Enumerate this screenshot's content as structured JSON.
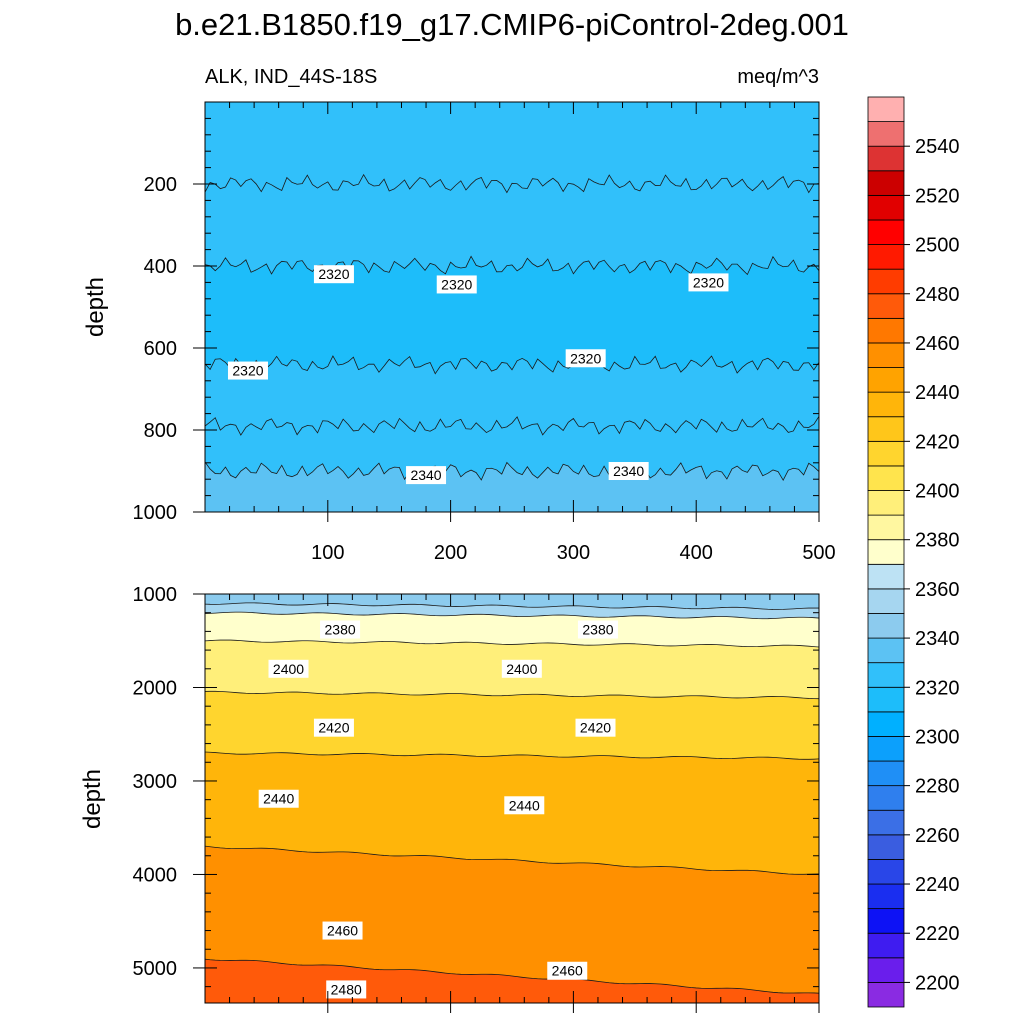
{
  "title": "b.e21.B1850.f19_g17.CMIP6-piControl-2deg.001",
  "variable_label": "ALK, IND_44S-18S",
  "units_label": "meq/m^3",
  "colors": {
    "colorbar_levels": [
      {
        "value": 2200,
        "color": "#8a2be2"
      },
      {
        "value": 2210,
        "color": "#6a1eec"
      },
      {
        "value": 2220,
        "color": "#3f1cf0"
      },
      {
        "value": 2230,
        "color": "#0d12f5"
      },
      {
        "value": 2240,
        "color": "#1a2ef0"
      },
      {
        "value": 2250,
        "color": "#2946e8"
      },
      {
        "value": 2260,
        "color": "#3a5de0"
      },
      {
        "value": 2270,
        "color": "#3b6fe6"
      },
      {
        "value": 2280,
        "color": "#2f7fee"
      },
      {
        "value": 2290,
        "color": "#1f8ff6"
      },
      {
        "value": 2300,
        "color": "#0ca0fc"
      },
      {
        "value": 2310,
        "color": "#00b0ff"
      },
      {
        "value": 2320,
        "color": "#1dbdfa"
      },
      {
        "value": 2330,
        "color": "#31c0fa"
      },
      {
        "value": 2340,
        "color": "#5cc2f3"
      },
      {
        "value": 2350,
        "color": "#8ccbee"
      },
      {
        "value": 2360,
        "color": "#a6d6f0"
      },
      {
        "value": 2370,
        "color": "#bde2f4"
      },
      {
        "value": 2380,
        "color": "#ffffcc"
      },
      {
        "value": 2390,
        "color": "#fff7a0"
      },
      {
        "value": 2400,
        "color": "#ffef7a"
      },
      {
        "value": 2410,
        "color": "#ffe44d"
      },
      {
        "value": 2420,
        "color": "#ffd52e"
      },
      {
        "value": 2430,
        "color": "#ffc61a"
      },
      {
        "value": 2440,
        "color": "#ffb50a"
      },
      {
        "value": 2450,
        "color": "#ffa300"
      },
      {
        "value": 2460,
        "color": "#ff9000"
      },
      {
        "value": 2470,
        "color": "#ff7800"
      },
      {
        "value": 2480,
        "color": "#ff5a0a"
      },
      {
        "value": 2490,
        "color": "#ff3c00"
      },
      {
        "value": 2500,
        "color": "#ff1a00"
      },
      {
        "value": 2510,
        "color": "#ff0000"
      },
      {
        "value": 2520,
        "color": "#e10000"
      },
      {
        "value": 2530,
        "color": "#cc0000"
      },
      {
        "value": 2540,
        "color": "#dd3333"
      },
      {
        "value": 2550,
        "color": "#ee7070"
      },
      {
        "value": 2560,
        "color": "#ffb0b0"
      }
    ]
  },
  "chart_data": [
    {
      "type": "heatmap",
      "panel": "upper",
      "xlabel": "",
      "ylabel": "depth",
      "xlim": [
        0,
        500
      ],
      "ylim": [
        1000,
        0
      ],
      "x_ticks": [
        100,
        200,
        300,
        400,
        500
      ],
      "y_ticks": [
        200,
        400,
        600,
        800,
        1000
      ],
      "bands": [
        {
          "from": 0,
          "to": 200,
          "value": 2330
        },
        {
          "from": 200,
          "to": 400,
          "value": 2330
        },
        {
          "from": 400,
          "to": 640,
          "value": 2320
        },
        {
          "from": 640,
          "to": 790,
          "value": 2330
        },
        {
          "from": 790,
          "to": 900,
          "value": 2330
        },
        {
          "from": 900,
          "to": 1000,
          "value": 2340
        }
      ],
      "contour_labels": [
        {
          "text": "2320",
          "x": 105,
          "y": 420
        },
        {
          "text": "2320",
          "x": 205,
          "y": 445
        },
        {
          "text": "2320",
          "x": 410,
          "y": 440
        },
        {
          "text": "2320",
          "x": 35,
          "y": 655
        },
        {
          "text": "2320",
          "x": 310,
          "y": 625
        },
        {
          "text": "2340",
          "x": 180,
          "y": 910
        },
        {
          "text": "2340",
          "x": 345,
          "y": 900
        }
      ]
    },
    {
      "type": "heatmap",
      "panel": "lower",
      "xlabel": "",
      "ylabel": "depth",
      "xlim": [
        0,
        500
      ],
      "ylim": [
        5375,
        1000
      ],
      "y_ticks": [
        1000,
        2000,
        3000,
        4000,
        5000
      ],
      "bands": [
        {
          "from": 1000,
          "to": 1100,
          "value": 2350
        },
        {
          "from": 1100,
          "to": 1200,
          "value": 2360
        },
        {
          "from": 1200,
          "to": 1500,
          "value": 2380
        },
        {
          "from": 1500,
          "to": 2050,
          "value": 2400
        },
        {
          "from": 2050,
          "to": 2700,
          "value": 2420
        },
        {
          "from": 2700,
          "to": 3700,
          "value": 2440
        },
        {
          "from": 3700,
          "to": 4900,
          "value": 2460
        },
        {
          "from": 4900,
          "to": 5375,
          "value": 2480
        }
      ],
      "contour_labels": [
        {
          "text": "2380",
          "x": 110,
          "y": 1380
        },
        {
          "text": "2380",
          "x": 320,
          "y": 1380
        },
        {
          "text": "2400",
          "x": 68,
          "y": 1800
        },
        {
          "text": "2400",
          "x": 258,
          "y": 1800
        },
        {
          "text": "2420",
          "x": 105,
          "y": 2430
        },
        {
          "text": "2420",
          "x": 318,
          "y": 2430
        },
        {
          "text": "2440",
          "x": 60,
          "y": 3190
        },
        {
          "text": "2440",
          "x": 260,
          "y": 3260
        },
        {
          "text": "2460",
          "x": 112,
          "y": 4600
        },
        {
          "text": "2460",
          "x": 295,
          "y": 5030
        },
        {
          "text": "2480",
          "x": 115,
          "y": 5230
        }
      ]
    }
  ],
  "colorbar": {
    "labels": [
      2200,
      2220,
      2240,
      2260,
      2280,
      2300,
      2320,
      2340,
      2360,
      2380,
      2400,
      2420,
      2440,
      2460,
      2480,
      2500,
      2520,
      2540
    ]
  }
}
